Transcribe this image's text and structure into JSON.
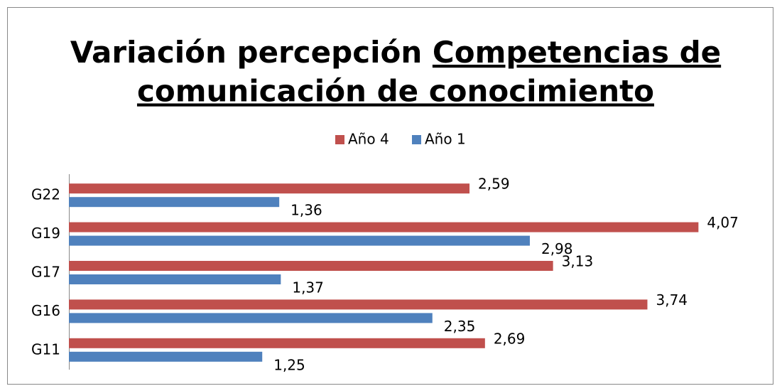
{
  "chart_data": {
    "type": "bar",
    "orientation": "horizontal",
    "title": [
      "Variación percepción",
      "Competencias de",
      "comunicación de conocimiento"
    ],
    "categories": [
      "G22",
      "G19",
      "G17",
      "G16",
      "G11"
    ],
    "series": [
      {
        "name": "Año 4",
        "color": "#c0504d",
        "values": [
          2.59,
          4.07,
          3.13,
          3.74,
          2.69
        ],
        "value_labels": [
          "2,59",
          "4,07",
          "3,13",
          "3,74",
          "2,69"
        ]
      },
      {
        "name": "Año 1",
        "color": "#4f81bd",
        "values": [
          1.36,
          2.98,
          1.37,
          2.35,
          1.25
        ],
        "value_labels": [
          "1,36",
          "2,98",
          "1,37",
          "2,35",
          "1,25"
        ]
      }
    ],
    "xlim": [
      0,
      4.5
    ],
    "legend": "top"
  }
}
